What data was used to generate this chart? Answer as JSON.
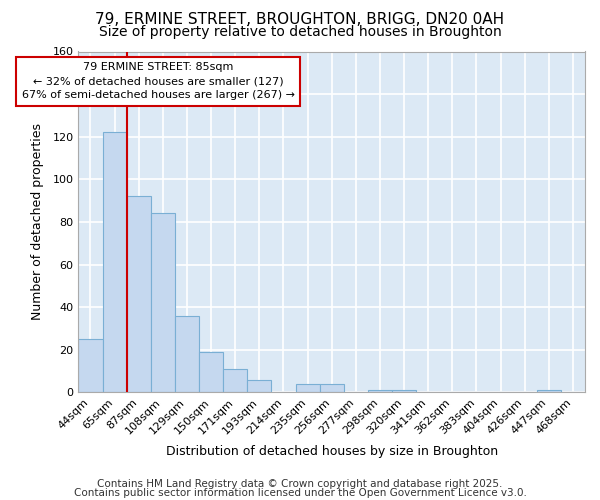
{
  "title1": "79, ERMINE STREET, BROUGHTON, BRIGG, DN20 0AH",
  "title2": "Size of property relative to detached houses in Broughton",
  "xlabel": "Distribution of detached houses by size in Broughton",
  "ylabel": "Number of detached properties",
  "categories": [
    "44sqm",
    "65sqm",
    "87sqm",
    "108sqm",
    "129sqm",
    "150sqm",
    "171sqm",
    "193sqm",
    "214sqm",
    "235sqm",
    "256sqm",
    "277sqm",
    "298sqm",
    "320sqm",
    "341sqm",
    "362sqm",
    "383sqm",
    "404sqm",
    "426sqm",
    "447sqm",
    "468sqm"
  ],
  "values": [
    25,
    122,
    92,
    84,
    36,
    19,
    11,
    6,
    0,
    4,
    4,
    0,
    1,
    1,
    0,
    0,
    0,
    0,
    0,
    1,
    0
  ],
  "bar_color": "#c5d8ef",
  "bar_edge_color": "#7aafd4",
  "vline_color": "#cc0000",
  "annotation_text": "79 ERMINE STREET: 85sqm\n← 32% of detached houses are smaller (127)\n67% of semi-detached houses are larger (267) →",
  "annotation_box_color": "#ffffff",
  "annotation_box_edge": "#cc0000",
  "ylim": [
    0,
    160
  ],
  "yticks": [
    0,
    20,
    40,
    60,
    80,
    100,
    120,
    140,
    160
  ],
  "footer1": "Contains HM Land Registry data © Crown copyright and database right 2025.",
  "footer2": "Contains public sector information licensed under the Open Government Licence v3.0.",
  "fig_bg_color": "#ffffff",
  "plot_bg_color": "#dce9f5",
  "grid_color": "#ffffff",
  "title_fontsize": 11,
  "subtitle_fontsize": 10,
  "axis_label_fontsize": 9,
  "tick_fontsize": 8,
  "annotation_fontsize": 8,
  "footer_fontsize": 7.5
}
